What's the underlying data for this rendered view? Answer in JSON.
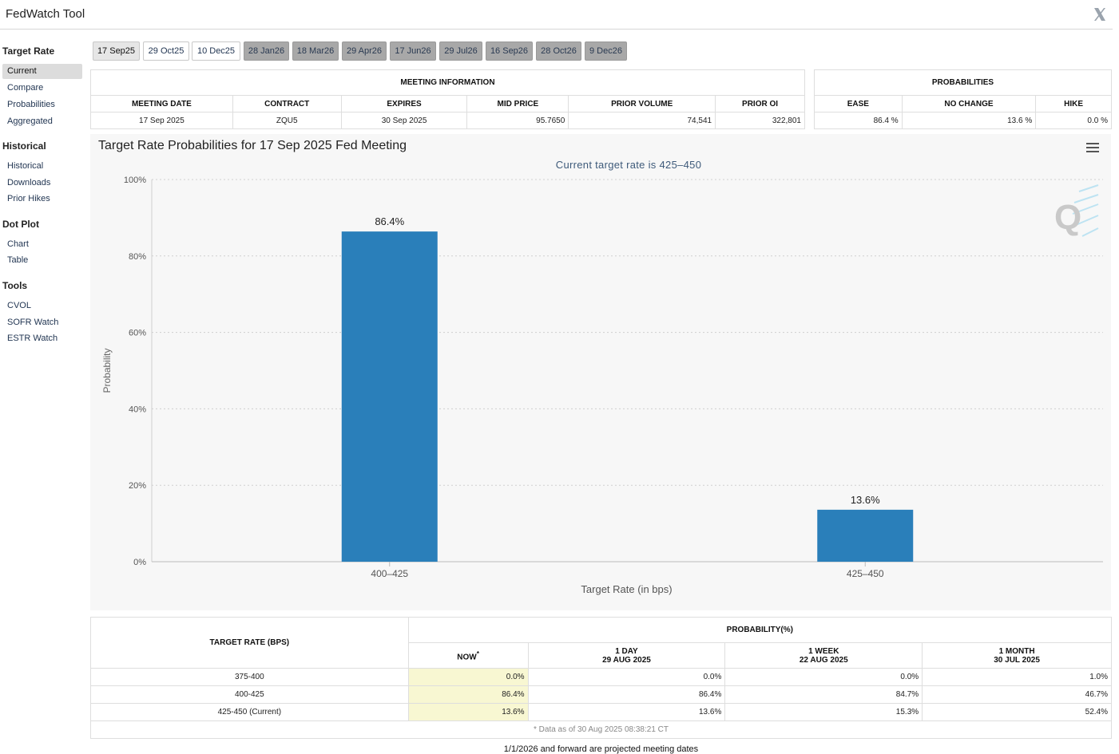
{
  "app": {
    "title": "FedWatch Tool"
  },
  "sidebar": {
    "sections": [
      {
        "title": "Target Rate",
        "items": [
          "Current",
          "Compare",
          "Probabilities",
          "Aggregated"
        ]
      },
      {
        "title": "Historical",
        "items": [
          "Historical",
          "Downloads",
          "Prior Hikes"
        ]
      },
      {
        "title": "Dot Plot",
        "items": [
          "Chart",
          "Table"
        ]
      },
      {
        "title": "Tools",
        "items": [
          "CVOL",
          "SOFR Watch",
          "ESTR Watch"
        ]
      }
    ],
    "active_item": "Current"
  },
  "meeting_tabs": [
    "17 Sep25",
    "29 Oct25",
    "10 Dec25",
    "28 Jan26",
    "18 Mar26",
    "29 Apr26",
    "17 Jun26",
    "29 Jul26",
    "16 Sep26",
    "28 Oct26",
    "9 Dec26"
  ],
  "meeting_info": {
    "title": "MEETING INFORMATION",
    "headers": [
      "MEETING DATE",
      "CONTRACT",
      "EXPIRES",
      "MID PRICE",
      "PRIOR VOLUME",
      "PRIOR OI"
    ],
    "values": [
      "17 Sep 2025",
      "ZQU5",
      "30 Sep 2025",
      "95.7650",
      "74,541",
      "322,801"
    ]
  },
  "probabilities": {
    "title": "PROBABILITIES",
    "headers": [
      "EASE",
      "NO CHANGE",
      "HIKE"
    ],
    "values": [
      "86.4 %",
      "13.6 %",
      "0.0 %"
    ]
  },
  "chart_data": {
    "type": "bar",
    "title": "Target Rate Probabilities for 17 Sep 2025 Fed Meeting",
    "subtitle": "Current target rate is 425–450",
    "categories": [
      "400–425",
      "425–450"
    ],
    "values": [
      86.4,
      13.6
    ],
    "data_labels": [
      "86.4%",
      "13.6%"
    ],
    "xlabel": "Target Rate (in bps)",
    "ylabel": "Probability",
    "ylim": [
      0,
      100
    ],
    "y_ticks": [
      0,
      20,
      40,
      60,
      80,
      100
    ],
    "y_tick_labels": [
      "0%",
      "20%",
      "40%",
      "60%",
      "80%",
      "100%"
    ],
    "grid": true,
    "bar_color": "#2a7fba"
  },
  "rate_table": {
    "rate_header": "TARGET RATE (BPS)",
    "prob_header": "PROBABILITY(%)",
    "columns": [
      {
        "line1": "NOW",
        "marker": "*",
        "line2": ""
      },
      {
        "line1": "1 DAY",
        "line2": "29 AUG 2025"
      },
      {
        "line1": "1 WEEK",
        "line2": "22 AUG 2025"
      },
      {
        "line1": "1 MONTH",
        "line2": "30 JUL 2025"
      }
    ],
    "rows": [
      {
        "rate": "375-400",
        "values": [
          "0.0%",
          "0.0%",
          "0.0%",
          "1.0%"
        ]
      },
      {
        "rate": "400-425",
        "values": [
          "86.4%",
          "86.4%",
          "84.7%",
          "46.7%"
        ]
      },
      {
        "rate": "425-450 (Current)",
        "values": [
          "13.6%",
          "13.6%",
          "15.3%",
          "52.4%"
        ]
      }
    ],
    "footnote": "* Data as of 30 Aug 2025 08:38:21 CT"
  },
  "bottom_note": "1/1/2026 and forward are projected meeting dates"
}
